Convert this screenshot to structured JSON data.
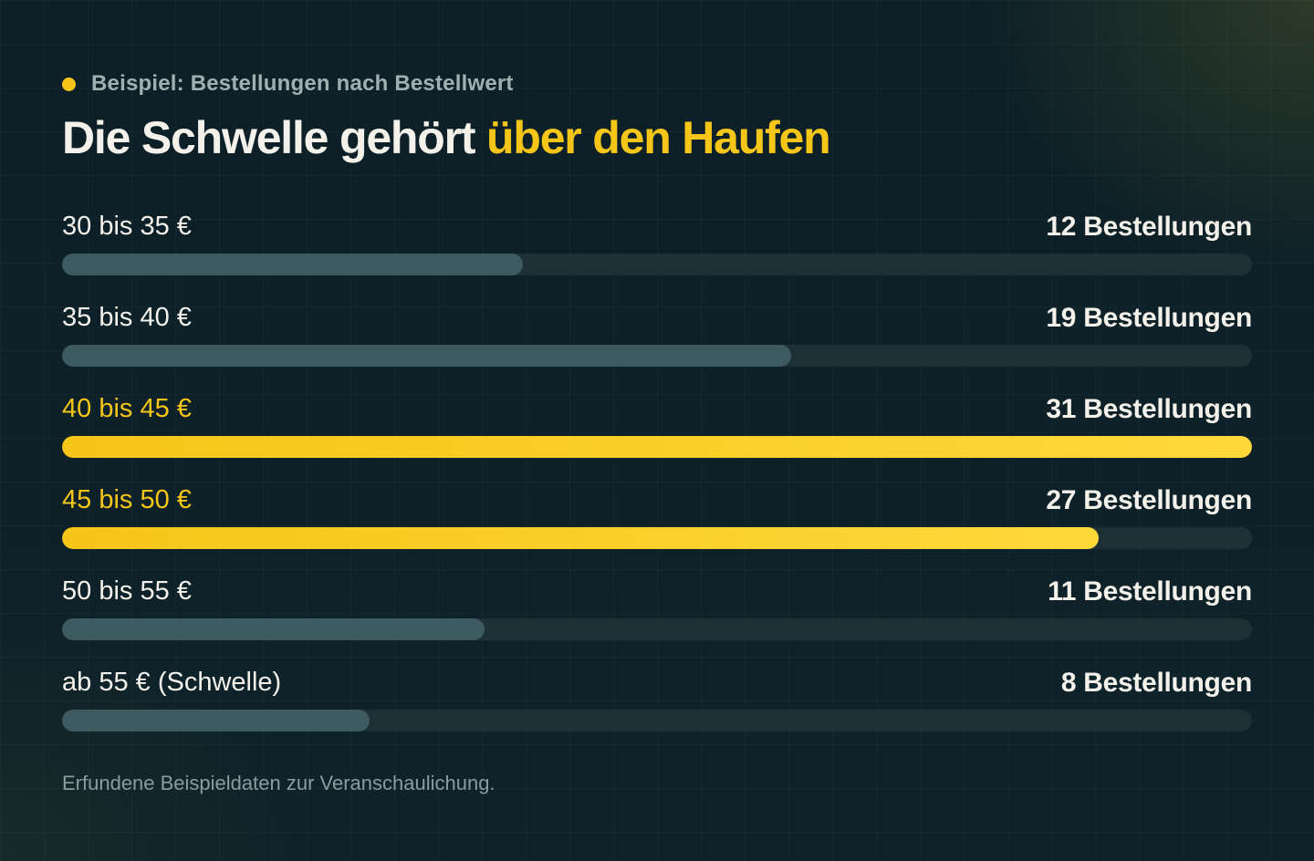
{
  "header": {
    "kicker": "Beispiel: Bestellungen nach Bestellwert",
    "title_main": "Die Schwelle gehört ",
    "title_highlight": "über den Haufen"
  },
  "chart_data": {
    "type": "bar",
    "orientation": "horizontal",
    "categories": [
      "30 bis 35 €",
      "35 bis 40 €",
      "40 bis 45 €",
      "45 bis 50 €",
      "50 bis 55 €",
      "ab 55 € (Schwelle)"
    ],
    "values": [
      12,
      19,
      31,
      27,
      11,
      8
    ],
    "value_labels": [
      "12 Bestellungen",
      "19 Bestellungen",
      "31 Bestellungen",
      "27 Bestellungen",
      "11 Bestellungen",
      "8 Bestellungen"
    ],
    "highlighted": [
      false,
      false,
      true,
      true,
      false,
      false
    ],
    "xlim": [
      0,
      31
    ],
    "colors": {
      "default": "#3c5a60",
      "highlight": "#f5c518",
      "track": "#1c3036"
    },
    "grid": false,
    "legend": "none"
  },
  "footnote": "Erfundene Beispieldaten zur Veranschaulichung."
}
